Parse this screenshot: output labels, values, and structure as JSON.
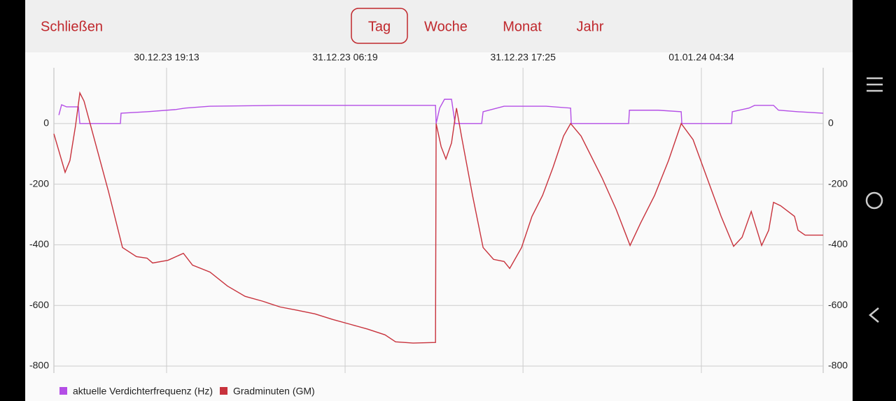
{
  "toolbar": {
    "close": "Schließen",
    "tabs": [
      "Tag",
      "Woche",
      "Monat",
      "Jahr"
    ],
    "selected": "Tag"
  },
  "chart_data": {
    "type": "line",
    "xlim": [
      0,
      48
    ],
    "xticks": [
      {
        "value": 7.03,
        "label": "30.12.23 19:13"
      },
      {
        "value": 18.17,
        "label": "31.12.23 06:19"
      },
      {
        "value": 29.27,
        "label": "31.12.23 17:25"
      },
      {
        "value": 40.4,
        "label": "01.01.24 04:34"
      }
    ],
    "ylim": [
      -800,
      184
    ],
    "yticks": [
      -800,
      -600,
      -400,
      -200,
      0
    ],
    "y2lim": [
      -800,
      184
    ],
    "y2ticks": [
      -800,
      -600,
      -400,
      -200,
      0
    ],
    "grid": true,
    "legend": "bottom-left",
    "series": [
      {
        "name": "aktuelle Verdichterfrequenz (Hz)",
        "color": "#b44ee6",
        "x": [
          0.31,
          0.48,
          0.79,
          1.53,
          1.62,
          4.15,
          4.19,
          5.81,
          7.56,
          8.21,
          9.74,
          14.11,
          18.48,
          23.81,
          23.85,
          24.07,
          24.37,
          24.81,
          25.03,
          26.69,
          26.78,
          28.09,
          30.71,
          32.24,
          32.28,
          35.86,
          35.91,
          37.7,
          39.14,
          39.18,
          42.28,
          42.33,
          43.37,
          43.72,
          44.9,
          45.21,
          46.43,
          48.0
        ],
        "values": [
          28,
          62,
          55,
          55,
          0,
          0,
          34,
          39,
          46,
          51,
          57,
          60,
          60,
          60,
          0,
          51,
          80,
          80,
          0,
          0,
          39,
          57,
          57,
          51,
          0,
          0,
          44,
          44,
          39,
          0,
          0,
          39,
          51,
          60,
          60,
          44,
          39,
          34
        ]
      },
      {
        "name": "Gradminuten (GM)",
        "color": "#c8323c",
        "x": [
          0,
          0.7,
          1.0,
          1.35,
          1.62,
          1.88,
          2.53,
          3.41,
          4.28,
          5.15,
          5.81,
          6.16,
          7.12,
          8.08,
          8.65,
          9.74,
          10.83,
          11.93,
          13.02,
          14.11,
          15.2,
          16.29,
          17.38,
          18.48,
          19.57,
          20.66,
          21.32,
          22.41,
          23.81,
          23.85,
          24.16,
          24.46,
          24.81,
          25.12,
          25.47,
          26.12,
          26.78,
          27.43,
          28.09,
          28.44,
          29.18,
          29.83,
          30.49,
          31.14,
          31.8,
          32.24,
          32.89,
          34.2,
          35.08,
          35.95,
          36.6,
          37.48,
          38.35,
          39.14,
          39.88,
          40.75,
          41.63,
          42.41,
          42.94,
          43.51,
          44.16,
          44.6,
          44.9,
          45.34,
          46.21,
          46.43,
          46.87,
          48.0
        ],
        "values": [
          -34,
          -161,
          -122,
          -7,
          101,
          74,
          -53,
          -225,
          -409,
          -439,
          -444,
          -460,
          -451,
          -428,
          -467,
          -490,
          -536,
          -570,
          -586,
          -605,
          -616,
          -628,
          -646,
          -662,
          -678,
          -697,
          -720,
          -724,
          -722,
          0,
          -76,
          -117,
          -64,
          51,
          -53,
          -237,
          -409,
          -448,
          -455,
          -478,
          -409,
          -306,
          -237,
          -145,
          -41,
          0,
          -41,
          -179,
          -283,
          -402,
          -329,
          -237,
          -122,
          0,
          -53,
          -179,
          -306,
          -405,
          -375,
          -290,
          -402,
          -352,
          -260,
          -271,
          -306,
          -352,
          -368,
          -368
        ]
      }
    ]
  }
}
